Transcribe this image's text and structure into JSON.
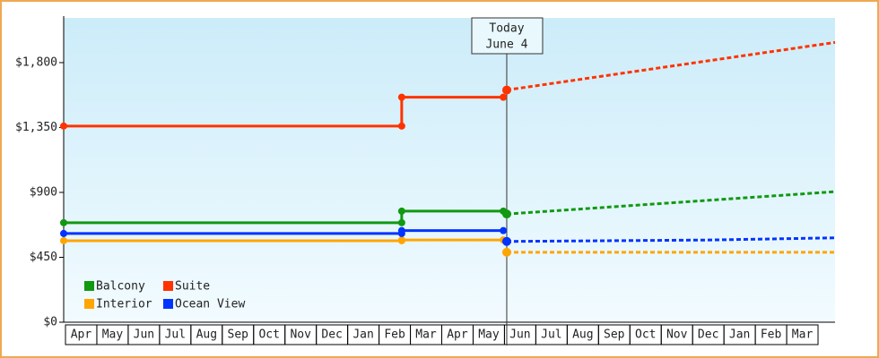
{
  "chart_data": {
    "type": "line",
    "categories": [
      "Apr",
      "May",
      "Jun",
      "Jul",
      "Aug",
      "Sep",
      "Oct",
      "Nov",
      "Dec",
      "Jan",
      "Feb",
      "Mar",
      "Apr",
      "May",
      "Jun",
      "Jul",
      "Aug",
      "Sep",
      "Oct",
      "Nov",
      "Dec",
      "Jan",
      "Feb",
      "Mar"
    ],
    "xlim": [
      0,
      24.6
    ],
    "ylim": [
      0,
      2110
    ],
    "yticks": [
      {
        "value": 0,
        "label": "$0"
      },
      {
        "value": 450,
        "label": "$450"
      },
      {
        "value": 900,
        "label": "$900"
      },
      {
        "value": 1350,
        "label": "$1,350"
      },
      {
        "value": 1800,
        "label": "$1,800"
      }
    ],
    "today": {
      "x": 14.13,
      "label": [
        "Today",
        "June 4"
      ]
    },
    "legend": "bottom-left",
    "series": [
      {
        "name": "Balcony",
        "color": "#119911",
        "x": [
          0,
          10.78,
          10.78,
          14.02
        ],
        "values": [
          690,
          690,
          770,
          770
        ],
        "forecast_x": [
          14.13,
          24.6
        ],
        "forecast_values": [
          750,
          905
        ]
      },
      {
        "name": "Suite",
        "color": "#ff3300",
        "x": [
          0,
          10.78,
          10.78,
          14.02
        ],
        "values": [
          1360,
          1360,
          1560,
          1560
        ],
        "forecast_x": [
          14.13,
          24.6
        ],
        "forecast_values": [
          1610,
          1940
        ]
      },
      {
        "name": "Interior",
        "color": "#ffa500",
        "x": [
          0,
          10.78,
          10.78,
          14.02
        ],
        "values": [
          565,
          565,
          570,
          570
        ],
        "forecast_x": [
          14.13,
          24.6
        ],
        "forecast_values": [
          485,
          485
        ]
      },
      {
        "name": "Ocean View",
        "color": "#0033ff",
        "x": [
          0,
          10.78,
          10.78,
          14.02
        ],
        "values": [
          615,
          615,
          635,
          635
        ],
        "forecast_x": [
          14.13,
          20.6,
          24.6
        ],
        "forecast_values": [
          560,
          570,
          585
        ]
      }
    ]
  }
}
